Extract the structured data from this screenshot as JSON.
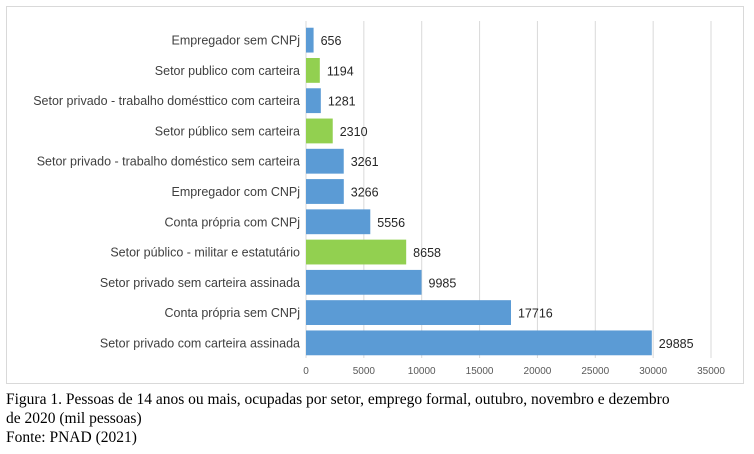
{
  "chart_data": {
    "type": "bar",
    "orientation": "horizontal",
    "categories": [
      "Empregador sem CNPj",
      "Setor publico com carteira",
      "Setor privado - trabalho domésttico com carteira",
      "Setor público sem carteira",
      "Setor privado - trabalho doméstico sem carteira",
      "Empregador com CNPj",
      "Conta própria com CNPj",
      "Setor público - militar e estatutário",
      "Setor privado sem carteira assinada",
      "Conta própria sem CNPj",
      "Setor privado com carteira assinada"
    ],
    "values": [
      656,
      1194,
      1281,
      2310,
      3261,
      3266,
      5556,
      8658,
      9985,
      17716,
      29885
    ],
    "value_labels": [
      "656",
      "1194",
      "1281",
      "2310",
      "3261",
      "3266",
      "5556",
      "8658",
      "9985",
      "17716",
      "29885"
    ],
    "bar_colors": [
      "#5b9bd5",
      "#92d050",
      "#5b9bd5",
      "#92d050",
      "#5b9bd5",
      "#5b9bd5",
      "#5b9bd5",
      "#92d050",
      "#5b9bd5",
      "#5b9bd5",
      "#5b9bd5"
    ],
    "xlim": [
      0,
      35000
    ],
    "xticks": [
      0,
      5000,
      10000,
      15000,
      20000,
      25000,
      30000,
      35000
    ],
    "xtick_labels": [
      "0",
      "5000",
      "10000",
      "15000",
      "20000",
      "25000",
      "30000",
      "35000"
    ],
    "grid": true,
    "legend": false,
    "title": "",
    "xlabel": "",
    "ylabel": ""
  },
  "caption": {
    "line1": "Figura 1. Pessoas de 14 anos ou mais, ocupadas por setor, emprego formal, outubro, novembro e dezembro",
    "line2": "de 2020 (mil pessoas)",
    "line3": "Fonte: PNAD (2021)"
  },
  "colors": {
    "blue_bar": "#5b9bd5",
    "green_bar": "#92d050",
    "gridline": "#d9d9d9"
  }
}
